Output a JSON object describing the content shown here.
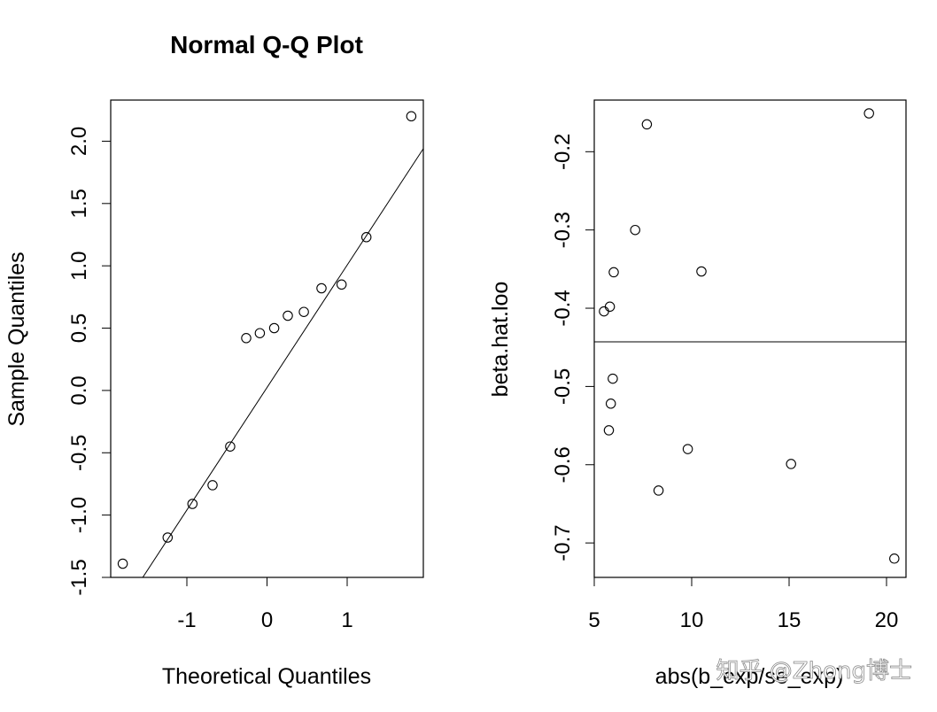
{
  "chart_data": [
    {
      "type": "scatter",
      "title": "Normal Q-Q Plot",
      "xlabel": "Theoretical Quantiles",
      "ylabel": "Sample Quantiles",
      "xlim": [
        -1.95,
        1.95
      ],
      "ylim": [
        -1.5,
        2.33
      ],
      "xticks": [
        "-1",
        "0",
        "1"
      ],
      "xtick_values": [
        -1,
        0,
        1
      ],
      "yticks": [
        "-1.5",
        "-1.0",
        "-0.5",
        "0.0",
        "0.5",
        "1.0",
        "1.5",
        "2.0"
      ],
      "ytick_values": [
        -1.5,
        -1.0,
        -0.5,
        0.0,
        0.5,
        1.0,
        1.5,
        2.0
      ],
      "x": [
        -1.8,
        -1.24,
        -0.93,
        -0.68,
        -0.46,
        -0.26,
        -0.09,
        0.09,
        0.26,
        0.46,
        0.68,
        0.93,
        1.24,
        1.8
      ],
      "y": [
        -1.39,
        -1.18,
        -0.91,
        -0.76,
        -0.45,
        0.42,
        0.46,
        0.5,
        0.6,
        0.63,
        0.82,
        0.85,
        1.23,
        2.2
      ],
      "reference_line": {
        "x": [
          -1.55,
          1.95
        ],
        "y": [
          -1.5,
          1.94
        ]
      },
      "grid": false,
      "legend": "none"
    },
    {
      "type": "scatter",
      "title": "",
      "xlabel": "abs(b_exp/se_exp)",
      "ylabel": "beta.hat.loo",
      "xlim": [
        5.0,
        21.0
      ],
      "ylim": [
        -0.744,
        -0.134
      ],
      "xticks": [
        "5",
        "10",
        "15",
        "20"
      ],
      "xtick_values": [
        5,
        10,
        15,
        20
      ],
      "yticks": [
        "-0.7",
        "-0.6",
        "-0.5",
        "-0.4",
        "-0.3",
        "-0.2"
      ],
      "ytick_values": [
        -0.7,
        -0.6,
        -0.5,
        -0.4,
        -0.3,
        -0.2
      ],
      "x": [
        7.7,
        19.1,
        7.1,
        6.0,
        10.5,
        5.8,
        5.5,
        5.95,
        5.85,
        5.75,
        9.8,
        15.1,
        8.3,
        20.4
      ],
      "y": [
        -0.165,
        -0.151,
        -0.3,
        -0.354,
        -0.353,
        -0.398,
        -0.404,
        -0.49,
        -0.522,
        -0.556,
        -0.58,
        -0.599,
        -0.633,
        -0.72
      ],
      "hline": -0.443,
      "grid": false,
      "legend": "none"
    }
  ],
  "watermark": "知乎 @Zhong博士"
}
